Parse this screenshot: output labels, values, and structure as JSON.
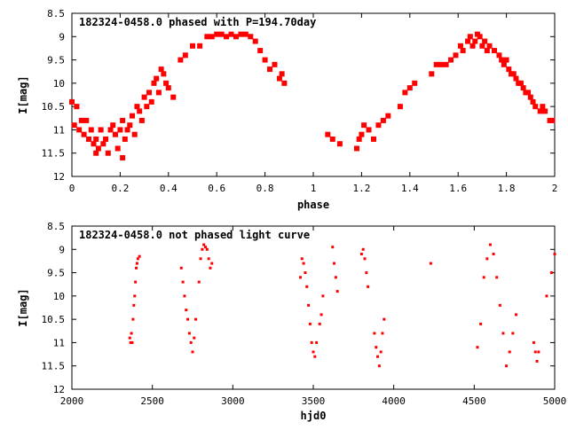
{
  "colors": {
    "points": "#ff0000",
    "axes": "#000000",
    "background": "#ffffff"
  },
  "chart_data": [
    {
      "type": "scatter",
      "title": "182324-0458.0 phased with P=194.70day",
      "xlabel": "phase",
      "ylabel": "I[mag]",
      "xlim": [
        0,
        2
      ],
      "ylim": [
        8.5,
        12
      ],
      "y_inverted": true,
      "grid": false,
      "marker": "filled-square",
      "xticks": [
        "0",
        "0.2",
        "0.4",
        "0.6",
        "0.8",
        "1",
        "1.2",
        "1.4",
        "1.6",
        "1.8",
        "2"
      ],
      "yticks": [
        "8.5",
        "9",
        "9.5",
        "10",
        "10.5",
        "11",
        "11.5",
        "12"
      ],
      "series": [
        {
          "x": [
            0.0,
            0.01,
            0.02,
            0.03,
            0.04,
            0.05,
            0.06,
            0.07,
            0.08,
            0.09,
            0.1,
            0.1,
            0.11,
            0.12,
            0.13,
            0.14,
            0.15,
            0.16,
            0.17,
            0.18,
            0.19,
            0.2,
            0.21,
            0.21,
            0.22,
            0.23,
            0.24,
            0.25,
            0.26,
            0.27,
            0.28,
            0.29,
            0.3,
            0.31,
            0.32,
            0.33,
            0.34,
            0.35,
            0.36,
            0.37,
            0.38,
            0.39,
            0.4,
            0.42,
            0.45,
            0.47,
            0.5,
            0.53,
            0.56,
            0.58,
            0.6,
            0.62,
            0.64,
            0.66,
            0.68,
            0.7,
            0.72,
            0.74,
            0.76,
            0.78,
            0.8,
            0.82,
            0.84,
            0.86,
            0.87,
            0.88,
            1.06,
            1.08,
            1.11,
            1.18,
            1.19,
            1.2,
            1.21,
            1.23,
            1.25,
            1.27,
            1.29,
            1.31,
            1.36,
            1.38,
            1.4,
            1.42,
            1.49,
            1.51,
            1.53,
            1.55,
            1.57,
            1.59,
            1.61,
            1.62,
            1.64,
            1.65,
            1.66,
            1.67,
            1.68,
            1.69,
            1.7,
            1.71,
            1.72,
            1.73,
            1.75,
            1.77,
            1.78,
            1.79,
            1.8,
            1.81,
            1.82,
            1.83,
            1.84,
            1.85,
            1.86,
            1.87,
            1.88,
            1.89,
            1.9,
            1.91,
            1.92,
            1.94,
            1.95,
            1.96,
            1.98,
            1.99
          ],
          "y": [
            10.4,
            10.9,
            10.5,
            11.0,
            10.8,
            11.1,
            10.8,
            11.2,
            11.0,
            11.3,
            11.2,
            11.5,
            11.4,
            11.0,
            11.3,
            11.2,
            11.5,
            11.0,
            10.9,
            11.1,
            11.4,
            11.0,
            10.8,
            11.6,
            11.2,
            11.0,
            10.9,
            10.7,
            11.1,
            10.5,
            10.6,
            10.8,
            10.3,
            10.5,
            10.2,
            10.4,
            10.0,
            9.9,
            10.2,
            9.7,
            9.8,
            10.0,
            10.1,
            10.3,
            9.5,
            9.4,
            9.2,
            9.2,
            9.0,
            9.0,
            8.95,
            8.95,
            9.0,
            8.95,
            9.0,
            8.95,
            8.95,
            9.0,
            9.1,
            9.3,
            9.5,
            9.7,
            9.6,
            9.9,
            9.8,
            10.0,
            11.1,
            11.2,
            11.3,
            11.4,
            11.2,
            11.1,
            10.9,
            11.0,
            11.2,
            10.9,
            10.8,
            10.7,
            10.5,
            10.2,
            10.1,
            10.0,
            9.8,
            9.6,
            9.6,
            9.6,
            9.5,
            9.4,
            9.2,
            9.3,
            9.1,
            9.0,
            9.2,
            9.1,
            8.95,
            9.0,
            9.2,
            9.1,
            9.3,
            9.2,
            9.3,
            9.4,
            9.5,
            9.6,
            9.5,
            9.7,
            9.8,
            9.8,
            9.9,
            10.0,
            10.0,
            10.1,
            10.2,
            10.2,
            10.3,
            10.4,
            10.5,
            10.6,
            10.5,
            10.6,
            10.8,
            10.8
          ]
        }
      ]
    },
    {
      "type": "scatter",
      "title": "182324-0458.0 not phased light curve",
      "xlabel": "hjd0",
      "ylabel": "I[mag]",
      "xlim": [
        2000,
        5000
      ],
      "ylim": [
        8.5,
        12
      ],
      "y_inverted": true,
      "grid": false,
      "marker": "small-dot",
      "xticks": [
        "2000",
        "2500",
        "3000",
        "3500",
        "4000",
        "4500",
        "5000"
      ],
      "yticks": [
        "8.5",
        "9",
        "9.5",
        "10",
        "10.5",
        "11",
        "11.5",
        "12"
      ],
      "series": [
        {
          "x": [
            2360,
            2365,
            2370,
            2375,
            2380,
            2385,
            2390,
            2395,
            2400,
            2405,
            2410,
            2420,
            2680,
            2690,
            2700,
            2710,
            2720,
            2730,
            2740,
            2750,
            2760,
            2770,
            2790,
            2800,
            2810,
            2820,
            2830,
            2840,
            2850,
            2860,
            2870,
            3420,
            3430,
            3440,
            3450,
            3460,
            3470,
            3480,
            3490,
            3500,
            3510,
            3520,
            3540,
            3550,
            3560,
            3620,
            3630,
            3640,
            3650,
            3800,
            3810,
            3820,
            3830,
            3840,
            3880,
            3890,
            3900,
            3910,
            3920,
            3930,
            3940,
            4230,
            4520,
            4540,
            4560,
            4580,
            4600,
            4620,
            4640,
            4660,
            4680,
            4700,
            4720,
            4740,
            4760,
            4870,
            4880,
            4890,
            4900,
            4950,
            4980,
            5000
          ],
          "y": [
            10.9,
            11.0,
            10.8,
            11.0,
            10.5,
            10.2,
            10.0,
            9.7,
            9.4,
            9.3,
            9.2,
            9.15,
            9.4,
            9.7,
            10.0,
            10.3,
            10.5,
            10.8,
            11.0,
            11.2,
            10.9,
            10.5,
            9.7,
            9.2,
            9.0,
            8.9,
            8.95,
            9.0,
            9.2,
            9.4,
            9.3,
            9.6,
            9.2,
            9.3,
            9.5,
            9.8,
            10.2,
            10.6,
            11.0,
            11.2,
            11.3,
            11.0,
            10.6,
            10.4,
            10.0,
            8.95,
            9.3,
            9.6,
            9.9,
            9.1,
            9.0,
            9.2,
            9.5,
            9.8,
            10.8,
            11.1,
            11.3,
            11.5,
            11.2,
            10.8,
            10.5,
            9.3,
            11.1,
            10.6,
            9.6,
            9.2,
            8.9,
            9.1,
            9.6,
            10.2,
            10.8,
            11.5,
            11.2,
            10.8,
            10.4,
            11.0,
            11.2,
            11.4,
            11.2,
            10.0,
            9.5,
            9.1
          ]
        }
      ]
    }
  ]
}
